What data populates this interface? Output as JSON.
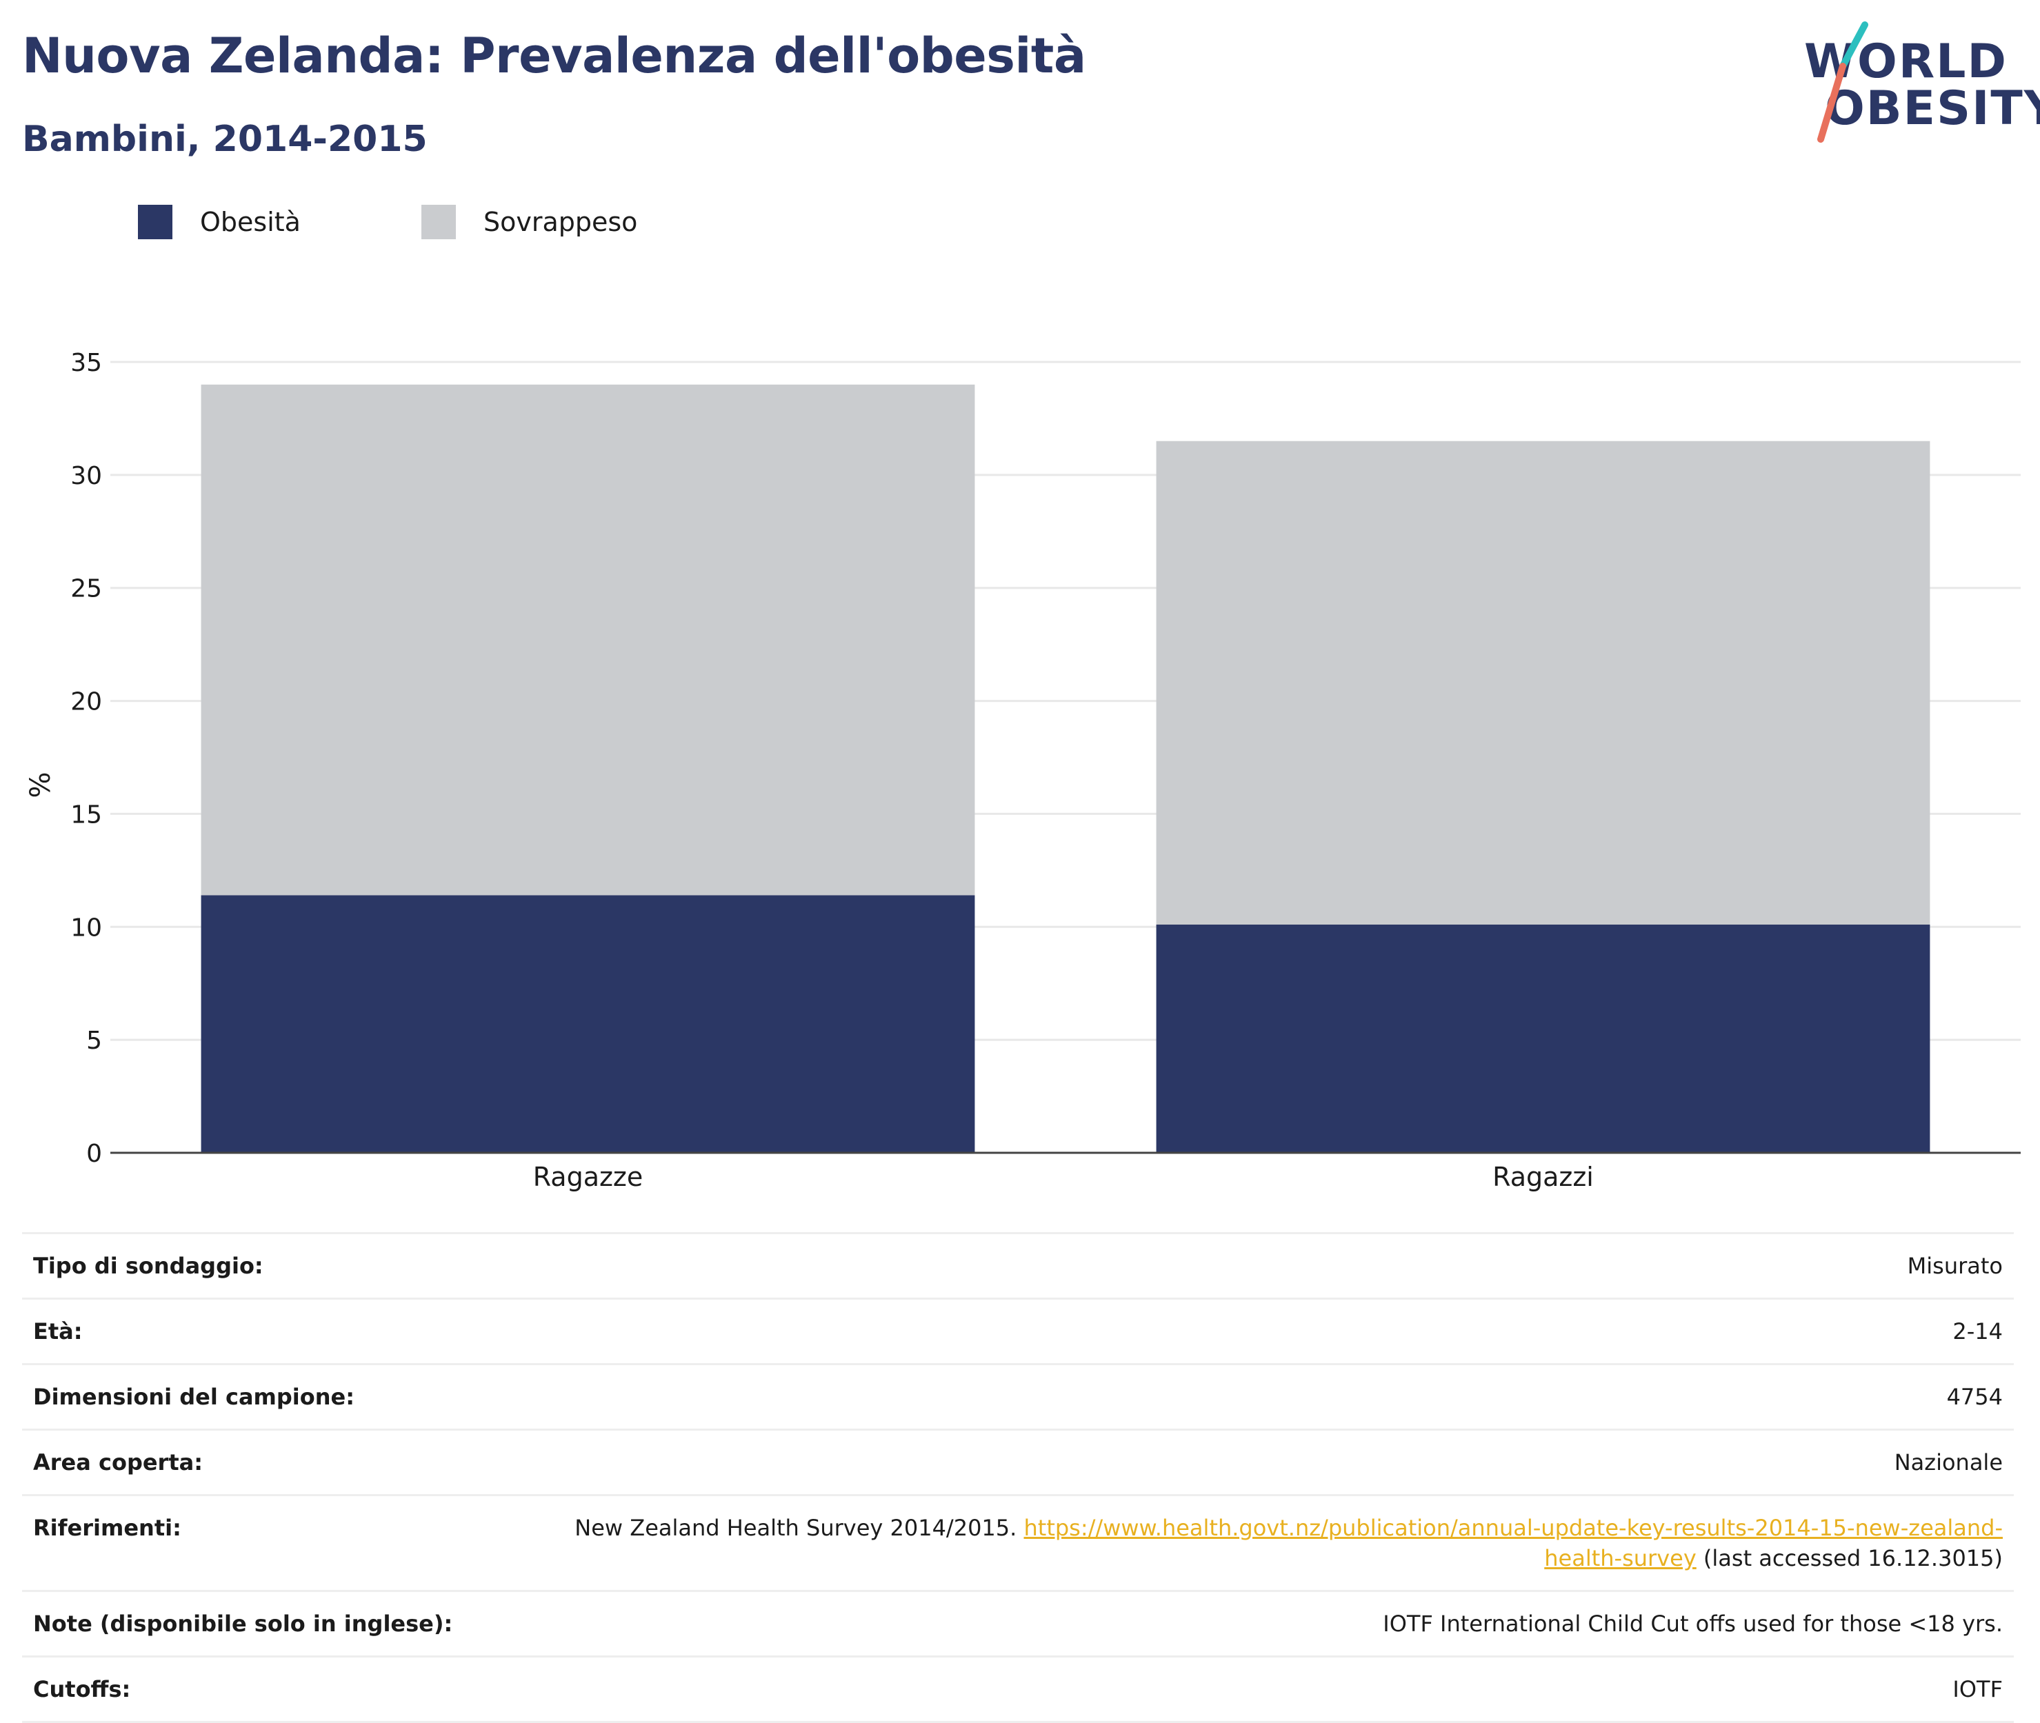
{
  "title": "Nuova Zelanda: Prevalenza dell'obesità",
  "subtitle": "Bambini, 2014-2015",
  "logo": {
    "line1": "WORLD",
    "line2": "OBESITY",
    "colors": {
      "text": "#2b3765",
      "slash_top": "#2cbfbf",
      "slash_bottom": "#e8705c"
    }
  },
  "legend": [
    {
      "label": "Obesità",
      "color": "#2b3765"
    },
    {
      "label": "Sovrappeso",
      "color": "#cacccf"
    }
  ],
  "chart_data": {
    "type": "bar",
    "stacked": true,
    "categories": [
      "Ragazze",
      "Ragazzi"
    ],
    "series": [
      {
        "name": "Obesità",
        "values": [
          11.4,
          10.1
        ],
        "color": "#2b3765"
      },
      {
        "name": "Sovrappeso",
        "values": [
          22.6,
          21.4
        ],
        "color": "#cacccf"
      }
    ],
    "xlabel": "",
    "ylabel": "%",
    "ylim": [
      0,
      35
    ],
    "yticks": [
      0,
      5,
      10,
      15,
      20,
      25,
      30,
      35
    ],
    "grid": true,
    "legend_position": "top-left"
  },
  "info": [
    {
      "label": "Tipo di sondaggio:",
      "value": "Misurato"
    },
    {
      "label": "Età:",
      "value": "2-14"
    },
    {
      "label": "Dimensioni del campione:",
      "value": "4754"
    },
    {
      "label": "Area coperta:",
      "value": "Nazionale"
    },
    {
      "label": "Riferimenti:",
      "value_prefix": "New Zealand Health Survey 2014/2015. ",
      "link": "https://www.health.govt.nz/publication/annual-update-key-results-2014-15-new-zealand-health-survey",
      "value_suffix": " (last accessed 16.12.3015)"
    },
    {
      "label": "Note (disponibile solo in inglese):",
      "value": "IOTF International Child Cut offs used for those <18 yrs."
    },
    {
      "label": "Cutoffs:",
      "value": "IOTF"
    }
  ]
}
